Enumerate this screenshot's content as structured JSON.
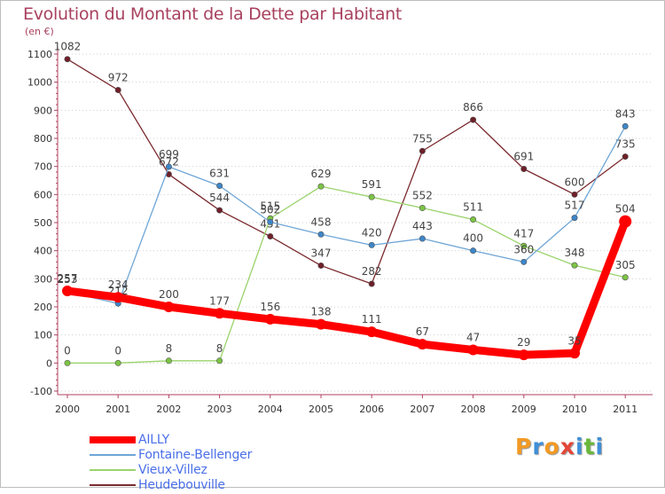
{
  "title": "Evolution du Montant de la Dette par Habitant",
  "unit": "(en €)",
  "brand": {
    "letters": [
      "P",
      "r",
      "o",
      "x",
      "i",
      "t",
      "i"
    ],
    "colors": [
      "#f29a24",
      "#3f8fd8",
      "#f29a24",
      "#e4463a",
      "#3f8fd8",
      "#6ab839",
      "#3f8fd8"
    ]
  },
  "chart_data": {
    "type": "line",
    "x": [
      "2000",
      "2001",
      "2002",
      "2003",
      "2004",
      "2005",
      "2006",
      "2007",
      "2008",
      "2009",
      "2010",
      "2011"
    ],
    "yticks": [
      "-100",
      "0",
      "100",
      "200",
      "300",
      "400",
      "500",
      "600",
      "700",
      "800",
      "900",
      "1000",
      "1100"
    ],
    "ylim": [
      -100,
      1100
    ],
    "grid": "horizontal-dotted",
    "legend_position": "bottom-left",
    "series": [
      {
        "name": "Heudebouville",
        "color": "#7b2a2e",
        "marker": "#6e1f28",
        "values": [
          1082,
          972,
          672,
          544,
          451,
          347,
          282,
          755,
          866,
          691,
          600,
          735
        ],
        "labels": [
          "1082",
          "972",
          "672",
          "544",
          "451",
          "347",
          "282",
          "755",
          "866",
          "691",
          "600",
          "735"
        ]
      },
      {
        "name": "Vieux-Villez",
        "color": "#9ad36b",
        "marker": "#7cc444",
        "values": [
          0,
          0,
          8,
          8,
          515,
          629,
          591,
          552,
          511,
          417,
          348,
          305
        ],
        "labels": [
          "0",
          "0",
          "8",
          "8",
          "515",
          "629",
          "591",
          "552",
          "511",
          "417",
          "348",
          "305"
        ]
      },
      {
        "name": "Fontaine-Bellenger",
        "color": "#6fa6d6",
        "marker": "#3d86c9",
        "values": [
          253,
          212,
          699,
          631,
          502,
          458,
          420,
          443,
          400,
          360,
          517,
          843
        ],
        "labels": [
          "253",
          "212",
          "699",
          "631",
          "502",
          "458",
          "420",
          "443",
          "400",
          "360",
          "517",
          "843"
        ]
      },
      {
        "name": "AILLY",
        "color": "#ff0000",
        "marker": "#ff0000",
        "values": [
          257,
          234,
          200,
          177,
          156,
          138,
          111,
          67,
          47,
          29,
          35,
          504
        ],
        "labels": [
          "257",
          "234",
          "200",
          "177",
          "156",
          "138",
          "111",
          "67",
          "47",
          "29",
          "35",
          "504"
        ]
      }
    ],
    "legend_order": [
      "AILLY",
      "Fontaine-Bellenger",
      "Vieux-Villez",
      "Heudebouville"
    ]
  }
}
